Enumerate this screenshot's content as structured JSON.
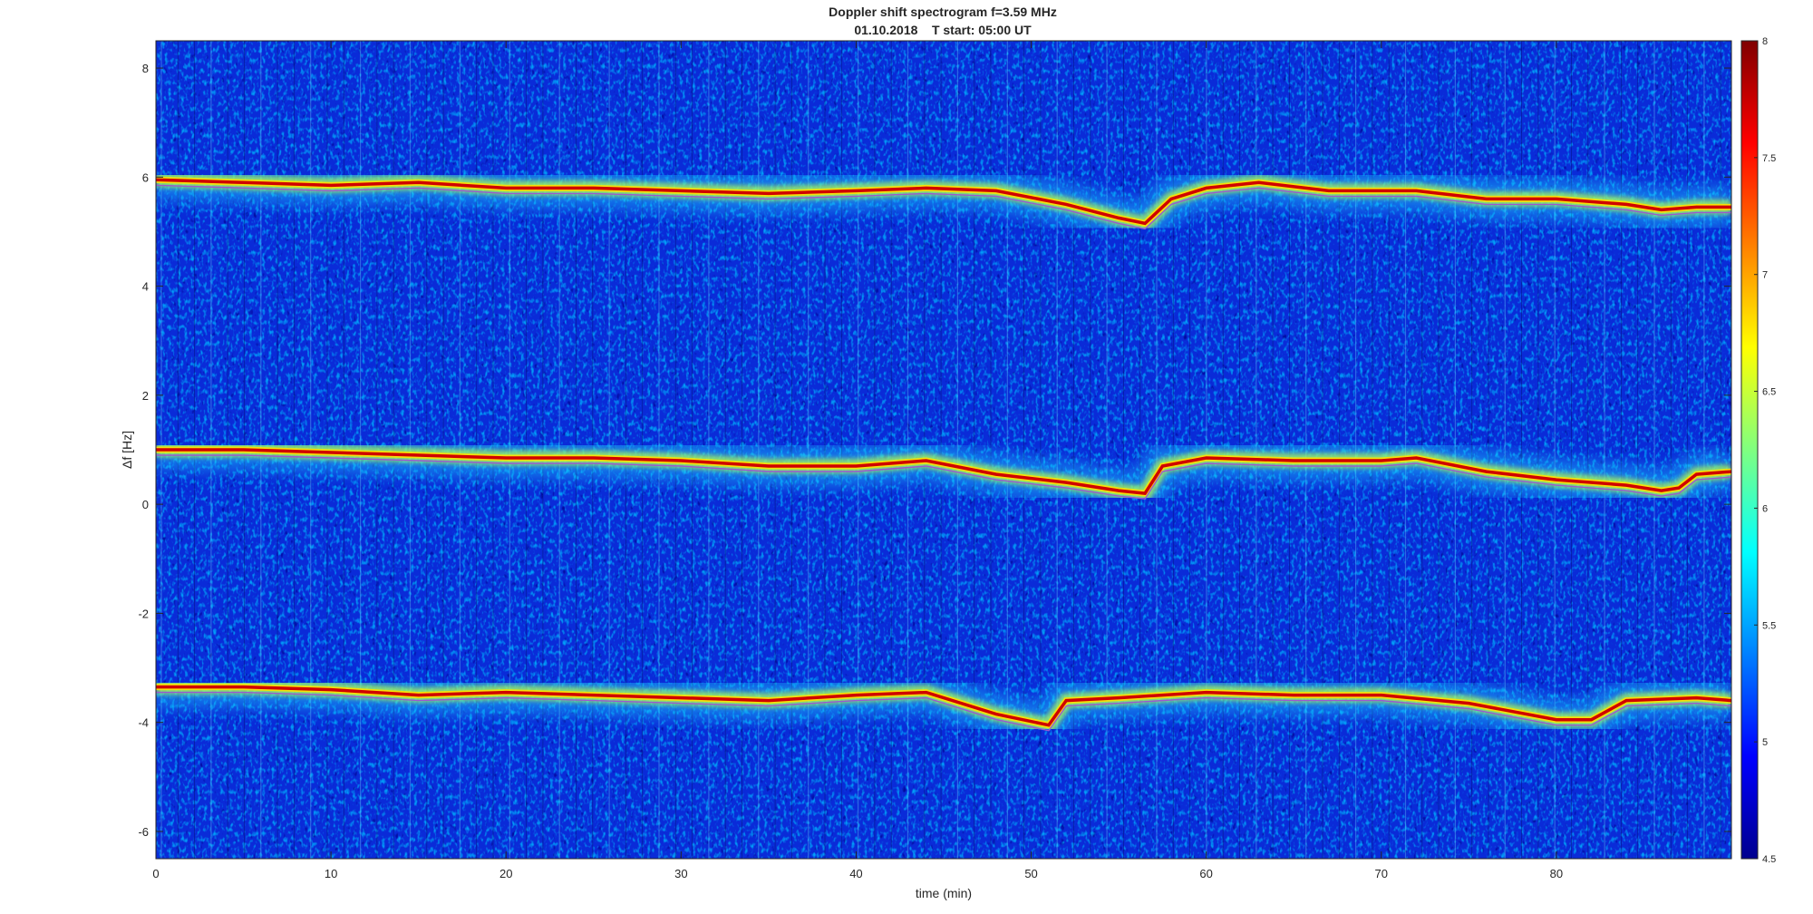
{
  "chart_data": {
    "type": "heatmap",
    "title": "Doppler shift spectrogram f=3.59 MHz",
    "subtitle": "01.10.2018    T start: 05:00 UT",
    "xlabel": "time (min)",
    "ylabel": "Δf [Hz]",
    "xlim": [
      0,
      90
    ],
    "ylim": [
      -6.5,
      8.5
    ],
    "xticks": [
      0,
      10,
      20,
      30,
      40,
      50,
      60,
      70,
      80
    ],
    "yticks": [
      -6,
      -4,
      -2,
      0,
      2,
      4,
      6,
      8
    ],
    "colorbar": {
      "range": [
        4.5,
        8
      ],
      "ticks": [
        4.5,
        5,
        5.5,
        6,
        6.5,
        7,
        7.5,
        8
      ],
      "colormap": "jet"
    },
    "grid": false,
    "series": [
      {
        "x": [
          0,
          5,
          10,
          15,
          20,
          25,
          30,
          35,
          40,
          44,
          48,
          52,
          55,
          56.5,
          58,
          60,
          63,
          67,
          72,
          76,
          80,
          84,
          86,
          88,
          90
        ],
        "y": [
          5.95,
          5.9,
          5.85,
          5.9,
          5.8,
          5.8,
          5.75,
          5.7,
          5.75,
          5.8,
          5.75,
          5.5,
          5.25,
          5.15,
          5.6,
          5.8,
          5.9,
          5.75,
          5.75,
          5.6,
          5.6,
          5.5,
          5.4,
          5.45,
          5.45
        ]
      },
      {
        "x": [
          0,
          5,
          10,
          15,
          20,
          25,
          30,
          35,
          40,
          44,
          48,
          52,
          55,
          56.5,
          57.5,
          60,
          65,
          70,
          72,
          76,
          80,
          84,
          86,
          87,
          88,
          90
        ],
        "y": [
          1.0,
          1.0,
          0.95,
          0.9,
          0.85,
          0.85,
          0.8,
          0.7,
          0.7,
          0.8,
          0.55,
          0.4,
          0.25,
          0.2,
          0.7,
          0.85,
          0.8,
          0.8,
          0.85,
          0.6,
          0.45,
          0.35,
          0.25,
          0.3,
          0.55,
          0.6
        ]
      },
      {
        "x": [
          0,
          5,
          10,
          15,
          20,
          25,
          30,
          35,
          40,
          44,
          48,
          51,
          52,
          55,
          60,
          65,
          70,
          75,
          80,
          82,
          84,
          88,
          90
        ],
        "y": [
          -3.35,
          -3.35,
          -3.4,
          -3.5,
          -3.45,
          -3.5,
          -3.55,
          -3.6,
          -3.5,
          -3.45,
          -3.85,
          -4.05,
          -3.6,
          -3.55,
          -3.45,
          -3.5,
          -3.5,
          -3.65,
          -3.95,
          -3.95,
          -3.6,
          -3.55,
          -3.6
        ]
      }
    ],
    "trace_color": "#9b59d0",
    "ridge_color": "#d00000"
  }
}
